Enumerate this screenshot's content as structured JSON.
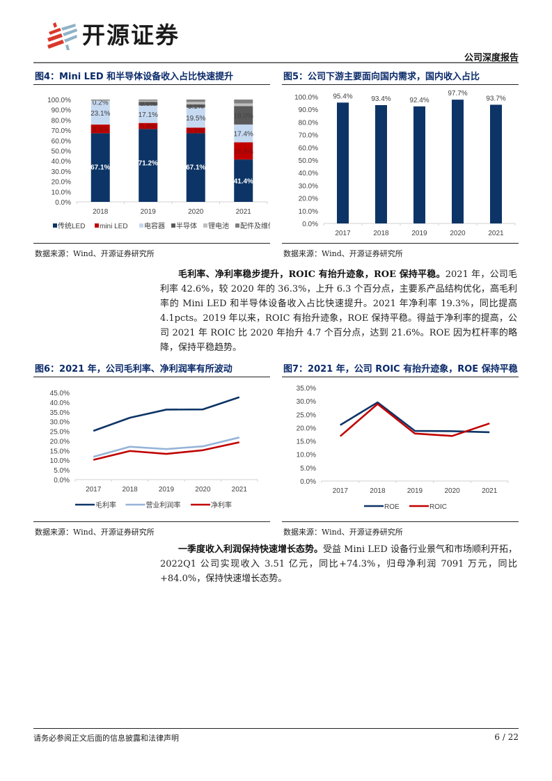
{
  "header": {
    "logo_text": "开源证券",
    "report_type": "公司深度报告"
  },
  "figures": {
    "fig4": {
      "title": "图4：Mini LED 和半导体设备收入占比快速提升",
      "source": "数据来源：Wind、开源证券研究所"
    },
    "fig5": {
      "title": "图5：公司下游主要面向国内需求，国内收入占比",
      "source": "数据来源：Wind、开源证券研究所"
    },
    "fig6": {
      "title": "图6：2021 年，公司毛利率、净利润率有所波动",
      "source": "数据来源：Wind、开源证券研究所"
    },
    "fig7": {
      "title": "图7：2021 年，公司 ROIC 有抬升迹象，ROE 保持平稳",
      "source": "数据来源：Wind、开源证券研究所"
    }
  },
  "paragraphs": {
    "p1_bold": "毛利率、净利率稳步提升，ROIC 有抬升迹象，ROE 保持平稳。",
    "p1_text": "2021 年，公司毛利率 42.6%，较 2020 年的 36.3%，上升 6.3 个百分点，主要系产品结构优化，高毛利率的 Mini LED 和半导体设备收入占比快速提升。2021 年净利率 19.3%，同比提高 4.1pcts。2019 年以来，ROIC 有抬升迹象，ROE 保持平稳。得益于净利率的提高，公司 2021 年 ROIC 比 2020 年抬升 4.7 个百分点，达到 21.6%。ROE 因为杠杆率的略降，保持平稳趋势。",
    "p2_bold": "一季度收入利润保持快速增长态势。",
    "p2_text": "受益 Mini LED 设备行业景气和市场顺利开拓，2022Q1 公司实现收入 3.51 亿元，同比+74.3%，归母净利润 7091 万元，同比+84.0%，保持快速增长态势。"
  },
  "footer": {
    "disclaimer": "请务必参阅正文后面的信息披露和法律声明",
    "page": "6 / 22"
  },
  "colors": {
    "navy": "#0d3466",
    "red": "#c00000",
    "light_blue": "#c5d9f1",
    "dark_gray": "#595959",
    "light_gray": "#bfbfbf",
    "mid_gray": "#808080",
    "line_light_blue": "#95b3d7"
  },
  "chart_data": [
    {
      "id": "fig4",
      "type": "bar",
      "stacked": true,
      "title": "Mini LED 和半导体设备收入占比快速提升",
      "categories": [
        "2018",
        "2019",
        "2020",
        "2021"
      ],
      "yticks": [
        "0.0%",
        "10.0%",
        "20.0%",
        "30.0%",
        "40.0%",
        "50.0%",
        "60.0%",
        "70.0%",
        "80.0%",
        "90.0%",
        "100.0%"
      ],
      "ylim": [
        0,
        100
      ],
      "series": [
        {
          "name": "传统LED",
          "color": "#0d3466",
          "values": [
            67.1,
            71.2,
            67.1,
            41.4
          ],
          "labels": [
            "67.1%",
            "71.2%",
            "67.1%",
            "41.4%"
          ]
        },
        {
          "name": "mini LED",
          "color": "#c00000",
          "values": [
            8.5,
            5.9,
            5.5,
            16.8
          ],
          "labels": [
            "8.5%",
            "5.9%",
            "5.5%",
            "16.8%"
          ]
        },
        {
          "name": "电容器",
          "color": "#c5d9f1",
          "values": [
            23.1,
            17.1,
            19.5,
            17.4
          ],
          "labels": [
            "23.1%",
            "17.1%",
            "19.5%",
            "17.4%"
          ]
        },
        {
          "name": "半导体",
          "color": "#595959",
          "values": [
            0.2,
            3.6,
            3.1,
            18.0
          ],
          "labels": [
            "0.2%",
            "3.6%",
            "3.1%",
            "18.0%"
          ]
        },
        {
          "name": "锂电池",
          "color": "#bfbfbf",
          "values": [
            0.5,
            1.2,
            2.5,
            2.6
          ],
          "labels": [
            "",
            "",
            "",
            ""
          ]
        },
        {
          "name": "配件及维修",
          "color": "#808080",
          "values": [
            0.6,
            1.0,
            2.3,
            3.8
          ],
          "labels": [
            "",
            "",
            "",
            ""
          ]
        }
      ],
      "legend_position": "bottom"
    },
    {
      "id": "fig5",
      "type": "bar",
      "title": "公司下游主要面向国内需求，国内收入占比",
      "categories": [
        "2017",
        "2018",
        "2019",
        "2020",
        "2021"
      ],
      "values": [
        95.4,
        93.4,
        92.4,
        97.7,
        93.7
      ],
      "labels": [
        "95.4%",
        "93.4%",
        "92.4%",
        "97.7%",
        "93.7%"
      ],
      "yticks": [
        "0.0%",
        "10.0%",
        "20.0%",
        "30.0%",
        "40.0%",
        "50.0%",
        "60.0%",
        "70.0%",
        "80.0%",
        "90.0%",
        "100.0%"
      ],
      "ylim": [
        0,
        100
      ],
      "color": "#0d3466"
    },
    {
      "id": "fig6",
      "type": "line",
      "title": "2021 年，公司毛利率、净利润率有所波动",
      "categories": [
        "2017",
        "2018",
        "2019",
        "2020",
        "2021"
      ],
      "yticks": [
        "0.0%",
        "5.0%",
        "10.0%",
        "15.0%",
        "20.0%",
        "25.0%",
        "30.0%",
        "35.0%",
        "40.0%",
        "45.0%"
      ],
      "ylim": [
        0,
        45
      ],
      "series": [
        {
          "name": "毛利率",
          "color": "#0d3466",
          "values": [
            25.2,
            32.0,
            36.2,
            36.3,
            42.6
          ]
        },
        {
          "name": "营业利润率",
          "color": "#95b3d7",
          "values": [
            11.8,
            17.0,
            15.8,
            17.2,
            21.8
          ]
        },
        {
          "name": "净利率",
          "color": "#c00000",
          "values": [
            10.2,
            14.8,
            13.3,
            15.2,
            19.3
          ]
        }
      ],
      "legend_position": "bottom"
    },
    {
      "id": "fig7",
      "type": "line",
      "title": "2021 年，公司 ROIC 有抬升迹象，ROE 保持平稳",
      "categories": [
        "2017",
        "2018",
        "2019",
        "2020",
        "2021"
      ],
      "yticks": [
        "0.0%",
        "5.0%",
        "10.0%",
        "15.0%",
        "20.0%",
        "25.0%",
        "30.0%",
        "35.0%"
      ],
      "ylim": [
        0,
        35
      ],
      "series": [
        {
          "name": "ROE",
          "color": "#0d3466",
          "values": [
            21.0,
            29.5,
            18.8,
            18.7,
            18.3
          ]
        },
        {
          "name": "ROIC",
          "color": "#c00000",
          "values": [
            16.8,
            28.9,
            17.8,
            16.9,
            21.6
          ]
        }
      ],
      "legend_position": "bottom"
    }
  ]
}
